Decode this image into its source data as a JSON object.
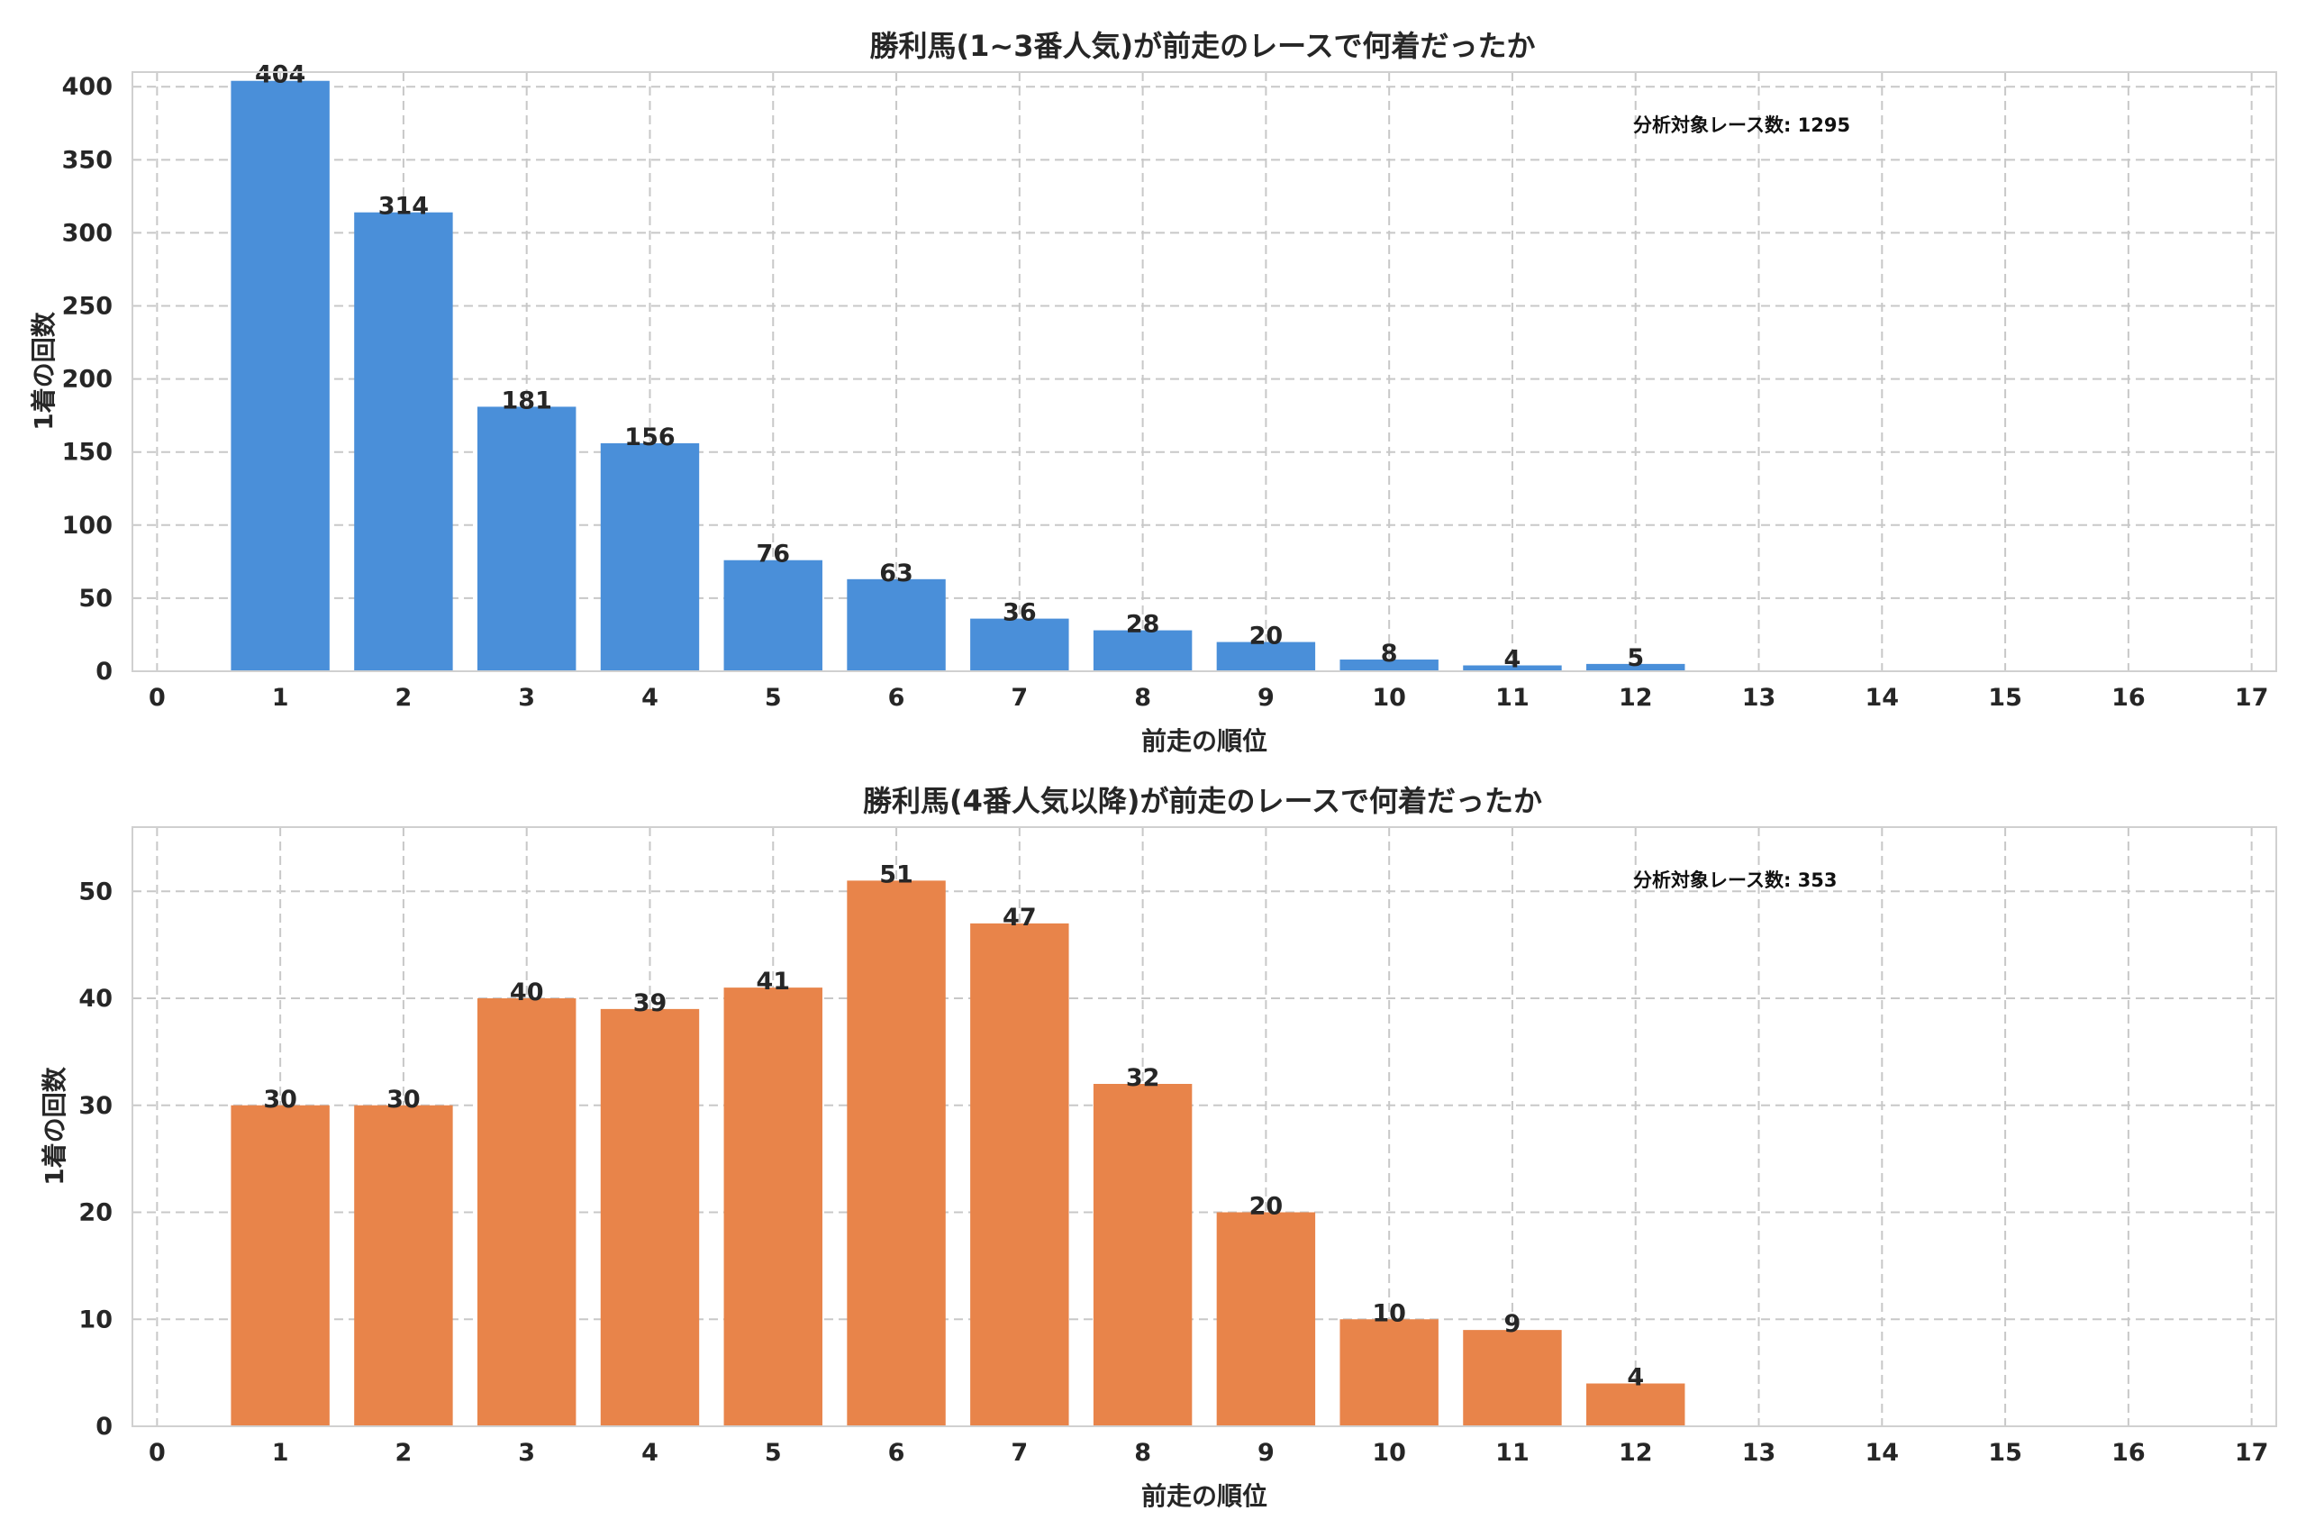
{
  "chart_data": [
    {
      "type": "bar",
      "title": "勝利馬(1~3番人気)が前走のレースで何着だったか",
      "xlabel": "前走の順位",
      "ylabel": "1着の回数",
      "annotation": "分析対象レース数: 1295",
      "color": "#4a8fd9",
      "x": [
        1,
        2,
        3,
        4,
        5,
        6,
        7,
        8,
        9,
        10,
        11,
        12
      ],
      "values": [
        404,
        314,
        181,
        156,
        76,
        63,
        36,
        28,
        20,
        8,
        4,
        5
      ],
      "xlim": [
        -0.2,
        17.2
      ],
      "ylim": [
        0,
        410
      ],
      "xticks": [
        0,
        1,
        2,
        3,
        4,
        5,
        6,
        7,
        8,
        9,
        10,
        11,
        12,
        13,
        14,
        15,
        16,
        17
      ],
      "yticks": [
        0,
        50,
        100,
        150,
        200,
        250,
        300,
        350,
        400
      ],
      "grid": true
    },
    {
      "type": "bar",
      "title": "勝利馬(4番人気以降)が前走のレースで何着だったか",
      "xlabel": "前走の順位",
      "ylabel": "1着の回数",
      "annotation": "分析対象レース数: 353",
      "color": "#e8844a",
      "x": [
        1,
        2,
        3,
        4,
        5,
        6,
        7,
        8,
        9,
        10,
        11,
        12
      ],
      "values": [
        30,
        30,
        40,
        39,
        41,
        51,
        47,
        32,
        20,
        10,
        9,
        4
      ],
      "xlim": [
        -0.2,
        17.2
      ],
      "ylim": [
        0,
        56
      ],
      "xticks": [
        0,
        1,
        2,
        3,
        4,
        5,
        6,
        7,
        8,
        9,
        10,
        11,
        12,
        13,
        14,
        15,
        16,
        17
      ],
      "yticks": [
        0,
        10,
        20,
        30,
        40,
        50
      ],
      "grid": true
    }
  ]
}
